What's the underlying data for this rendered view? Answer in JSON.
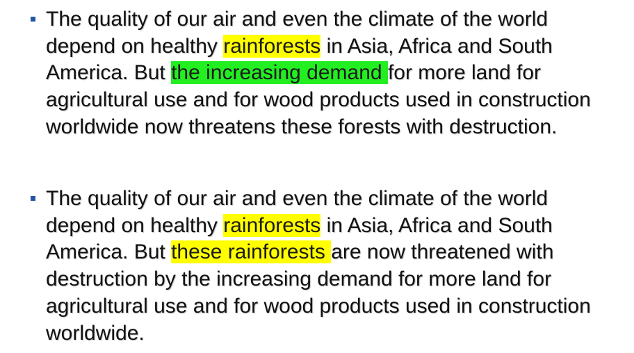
{
  "highlight_colors": {
    "yellow": "#ffff00",
    "green": "#22ee22"
  },
  "bullets": [
    {
      "segments": [
        {
          "text": "The quality of our air and even the climate of the world depend on healthy ",
          "highlight": "none"
        },
        {
          "text": "rainforests",
          "highlight": "yellow"
        },
        {
          "text": " in Asia, Africa and South America. But ",
          "highlight": "none"
        },
        {
          "text": "the increasing demand ",
          "highlight": "green"
        },
        {
          "text": "for more land for agricultural use and for wood products used in construction worldwide now threatens these forests with destruction.",
          "highlight": "none"
        }
      ]
    },
    {
      "segments": [
        {
          "text": "The quality of our air and even the climate of the world depend on healthy ",
          "highlight": "none"
        },
        {
          "text": "rainforests",
          "highlight": "yellow"
        },
        {
          "text": " in Asia, Africa and South America. But ",
          "highlight": "none"
        },
        {
          "text": "these rainforests ",
          "highlight": "yellow"
        },
        {
          "text": "are now threatened with destruction by the increasing demand for more land for agricultural use and for wood products used in construction worldwide.",
          "highlight": "none"
        }
      ]
    }
  ]
}
